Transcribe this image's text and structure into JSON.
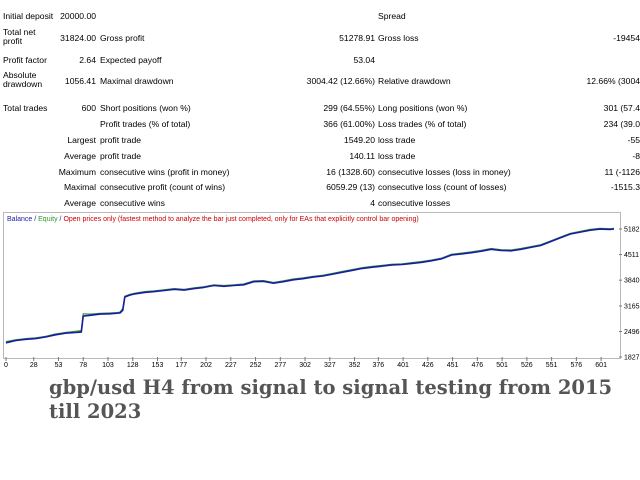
{
  "report": {
    "row1": {
      "initial_deposit_label": "Initial deposit",
      "initial_deposit": "20000.00",
      "spread_label": "Spread"
    },
    "row2": {
      "total_net_profit_label": "Total net profit",
      "total_net_profit": "31824.00",
      "gross_profit_label": "Gross profit",
      "gross_profit": "51278.91",
      "gross_loss_label": "Gross loss",
      "gross_loss": "-19454"
    },
    "row3": {
      "profit_factor_label": "Profit factor",
      "profit_factor": "2.64",
      "expected_payoff_label": "Expected payoff",
      "expected_payoff": "53.04"
    },
    "row4": {
      "absolute_drawdown_label": "Absolute drawdown",
      "absolute_drawdown": "1056.41",
      "maximal_drawdown_label": "Maximal drawdown",
      "maximal_drawdown": "3004.42 (12.66%)",
      "relative_drawdown_label": "Relative drawdown",
      "relative_drawdown": "12.66% (3004"
    },
    "row5": {
      "total_trades_label": "Total trades",
      "total_trades": "600",
      "short_positions_label": "Short positions (won %)",
      "short_positions": "299 (64.55%)",
      "long_positions_label": "Long positions (won %)",
      "long_positions": "301 (57.4"
    },
    "row6": {
      "profit_trades_label": "Profit trades (% of total)",
      "profit_trades": "366 (61.00%)",
      "loss_trades_label": "Loss trades (% of total)",
      "loss_trades": "234 (39.0"
    },
    "row7": {
      "prefix": "Largest",
      "profit_trade_label": "profit trade",
      "profit_trade": "1549.20",
      "loss_trade_label": "loss trade",
      "loss_trade": "-55"
    },
    "row8": {
      "prefix": "Average",
      "profit_trade_label": "profit trade",
      "profit_trade": "140.11",
      "loss_trade_label": "loss trade",
      "loss_trade": "-8"
    },
    "row9": {
      "prefix": "Maximum",
      "wins_label": "consecutive wins (profit in money)",
      "wins": "16 (1328.60)",
      "losses_label": "consecutive losses (loss in money)",
      "losses": "11 (-1126"
    },
    "row10": {
      "prefix": "Maximal",
      "profit_label": "consecutive profit (count of wins)",
      "profit": "6059.29 (13)",
      "loss_label": "consecutive loss (count of losses)",
      "loss": "-1515.3"
    },
    "row11": {
      "prefix": "Average",
      "wins_label": "consecutive wins",
      "wins": "4",
      "losses_label": "consecutive losses"
    }
  },
  "legend": {
    "balance": "Balance",
    "sep1": " / ",
    "equity": "Equity",
    "sep2": " / ",
    "note": "Open prices only (fastest method to analyze the bar just completed, only for EAs that explicitly control bar opening)",
    "balance_color": "#1a1aa6",
    "equity_color": "#2e9b2e",
    "note_color": "#cc0000"
  },
  "chart_data": {
    "type": "line",
    "title": "",
    "xlabel": "",
    "ylabel": "",
    "x_ticks": [
      0,
      28,
      53,
      78,
      103,
      128,
      153,
      177,
      202,
      227,
      252,
      277,
      302,
      327,
      352,
      376,
      401,
      426,
      451,
      476,
      501,
      526,
      551,
      576,
      601
    ],
    "y_ticks": [
      1827,
      2496,
      3165,
      3840,
      4511,
      5182
    ],
    "y_tick_labels": [
      "1827",
      "2496",
      "3165",
      "3840",
      "4511",
      "5182"
    ],
    "xlim": [
      0,
      614
    ],
    "ylim": [
      1827,
      5260
    ],
    "grid": false,
    "series": [
      {
        "name": "Balance",
        "color": "#1a1aa6",
        "x": [
          0,
          10,
          20,
          30,
          40,
          50,
          60,
          70,
          76,
          78,
          85,
          95,
          105,
          112,
          115,
          118,
          120,
          125,
          130,
          140,
          150,
          160,
          170,
          180,
          190,
          200,
          210,
          220,
          230,
          240,
          250,
          260,
          270,
          280,
          290,
          300,
          310,
          320,
          330,
          340,
          350,
          360,
          370,
          380,
          390,
          400,
          410,
          420,
          430,
          440,
          450,
          460,
          470,
          480,
          490,
          500,
          510,
          520,
          530,
          540,
          550,
          560,
          570,
          580,
          590,
          600,
          610,
          614
        ],
        "y": [
          2200,
          2260,
          2290,
          2310,
          2350,
          2410,
          2450,
          2470,
          2480,
          2900,
          2920,
          2950,
          2960,
          2975,
          2980,
          3050,
          3400,
          3450,
          3480,
          3520,
          3540,
          3570,
          3600,
          3580,
          3620,
          3650,
          3700,
          3680,
          3700,
          3720,
          3800,
          3810,
          3760,
          3800,
          3850,
          3880,
          3920,
          3950,
          4000,
          4050,
          4100,
          4150,
          4180,
          4210,
          4240,
          4250,
          4280,
          4310,
          4350,
          4400,
          4500,
          4530,
          4560,
          4600,
          4650,
          4620,
          4610,
          4650,
          4700,
          4750,
          4850,
          4950,
          5050,
          5100,
          5150,
          5180,
          5170,
          5182
        ]
      },
      {
        "name": "Equity",
        "color": "#2e9b2e",
        "x": [
          0,
          10,
          20,
          30,
          40,
          50,
          60,
          70,
          76,
          78,
          85,
          95,
          105,
          112,
          115,
          118,
          120,
          125,
          130,
          140,
          150,
          160,
          170,
          180,
          190,
          200,
          210,
          220,
          230,
          240,
          250,
          260,
          270,
          280,
          290,
          300,
          310,
          320,
          330,
          340,
          350,
          360,
          370,
          380,
          390,
          400,
          410,
          420,
          430,
          440,
          450,
          460,
          470,
          480,
          490,
          500,
          510,
          520,
          530,
          540,
          550,
          560,
          570,
          580,
          590,
          600,
          610,
          614
        ],
        "y": [
          2230,
          2280,
          2310,
          2330,
          2370,
          2430,
          2470,
          2500,
          2520,
          2960,
          2950,
          2970,
          2980,
          2990,
          3000,
          3100,
          3420,
          3470,
          3500,
          3540,
          3560,
          3590,
          3620,
          3600,
          3640,
          3670,
          3720,
          3700,
          3720,
          3740,
          3820,
          3830,
          3780,
          3820,
          3870,
          3900,
          3940,
          3970,
          4020,
          4070,
          4120,
          4170,
          4200,
          4230,
          4260,
          4270,
          4300,
          4330,
          4370,
          4420,
          4520,
          4550,
          4580,
          4620,
          4670,
          4640,
          4630,
          4670,
          4720,
          4770,
          4870,
          4970,
          5070,
          5120,
          5170,
          5200,
          5190,
          5200
        ]
      }
    ]
  },
  "caption": "gbp/usd H4 from signal to signal testing from 2015 till 2023"
}
